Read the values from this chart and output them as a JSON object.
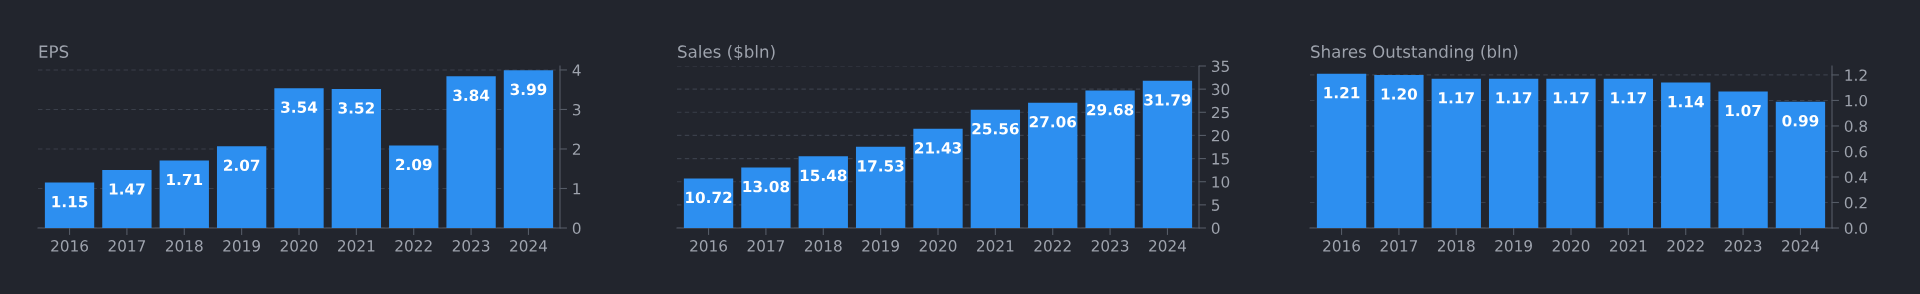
{
  "chart_data": [
    {
      "type": "bar",
      "title": "EPS",
      "categories": [
        "2016",
        "2017",
        "2018",
        "2019",
        "2020",
        "2021",
        "2022",
        "2023",
        "2024"
      ],
      "values": [
        1.15,
        1.47,
        1.71,
        2.07,
        3.54,
        3.52,
        2.09,
        3.84,
        3.99
      ],
      "color": "#2d8ff0",
      "ylim": [
        0,
        4.1
      ],
      "yticks": [
        0,
        1,
        2,
        3,
        4
      ],
      "grid": "y",
      "data_labels": true
    },
    {
      "type": "bar",
      "title": "Sales ($bln)",
      "categories": [
        "2016",
        "2017",
        "2018",
        "2019",
        "2020",
        "2021",
        "2022",
        "2023",
        "2024"
      ],
      "values": [
        10.72,
        13.08,
        15.48,
        17.53,
        21.43,
        25.56,
        27.06,
        29.68,
        31.79
      ],
      "color": "#2d8ff0",
      "ylim": [
        0,
        35
      ],
      "yticks": [
        0,
        5,
        10,
        15,
        20,
        25,
        30,
        35
      ],
      "grid": "y",
      "data_labels": true
    },
    {
      "type": "bar",
      "title": "Shares Outstanding (bln)",
      "categories": [
        "2016",
        "2017",
        "2018",
        "2019",
        "2020",
        "2021",
        "2022",
        "2023",
        "2024"
      ],
      "values": [
        1.21,
        1.2,
        1.17,
        1.17,
        1.17,
        1.17,
        1.14,
        1.07,
        0.99
      ],
      "value_labels": [
        "1.21",
        "1.20",
        "1.17",
        "1.17",
        "1.17",
        "1.17",
        "1.14",
        "1.07",
        "0.99"
      ],
      "color": "#2d8ff0",
      "ylim": [
        0,
        1.27
      ],
      "yticks": [
        {
          "value": 0,
          "label": "0.0"
        },
        {
          "value": 0.2,
          "label": "0.2"
        },
        {
          "value": 0.4,
          "label": "0.4"
        },
        {
          "value": 0.6,
          "label": "0.6"
        },
        {
          "value": 0.8,
          "label": "0.8"
        },
        {
          "value": 1.0,
          "label": "1.0"
        },
        {
          "value": 1.2,
          "label": "1.2"
        }
      ],
      "grid": "y"
    }
  ]
}
